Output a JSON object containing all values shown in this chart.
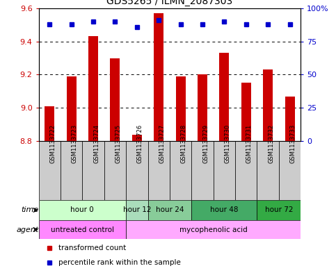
{
  "title": "GDS5265 / ILMN_2087303",
  "samples": [
    "GSM1133722",
    "GSM1133723",
    "GSM1133724",
    "GSM1133725",
    "GSM1133726",
    "GSM1133727",
    "GSM1133728",
    "GSM1133729",
    "GSM1133730",
    "GSM1133731",
    "GSM1133732",
    "GSM1133733"
  ],
  "bar_values": [
    9.01,
    9.19,
    9.43,
    9.3,
    8.84,
    9.57,
    9.19,
    9.2,
    9.33,
    9.15,
    9.23,
    9.07
  ],
  "percentile_values": [
    88,
    88,
    90,
    90,
    86,
    91,
    88,
    88,
    90,
    88,
    88,
    88
  ],
  "ylim_left": [
    8.8,
    9.6
  ],
  "ylim_right": [
    0,
    100
  ],
  "yticks_left": [
    8.8,
    9.0,
    9.2,
    9.4,
    9.6
  ],
  "yticks_right": [
    0,
    25,
    50,
    75,
    100
  ],
  "ytick_labels_right": [
    "0",
    "25",
    "50",
    "75",
    "100%"
  ],
  "bar_color": "#cc0000",
  "percentile_color": "#0000cc",
  "time_groups": [
    {
      "label": "hour 0",
      "start": 0,
      "end": 3,
      "color": "#ccffcc"
    },
    {
      "label": "hour 12",
      "start": 4,
      "end": 4,
      "color": "#aaddbb"
    },
    {
      "label": "hour 24",
      "start": 5,
      "end": 6,
      "color": "#88cc99"
    },
    {
      "label": "hour 48",
      "start": 7,
      "end": 9,
      "color": "#44aa66"
    },
    {
      "label": "hour 72",
      "start": 10,
      "end": 11,
      "color": "#33aa44"
    }
  ],
  "agent_groups": [
    {
      "label": "untreated control",
      "start": 0,
      "end": 3,
      "color": "#ff88ff"
    },
    {
      "label": "mycophenolic acid",
      "start": 4,
      "end": 11,
      "color": "#ffaaff"
    }
  ],
  "legend_items": [
    {
      "label": "transformed count",
      "color": "#cc0000"
    },
    {
      "label": "percentile rank within the sample",
      "color": "#0000cc"
    }
  ],
  "bar_width": 0.45,
  "sample_bg_color": "#cccccc"
}
